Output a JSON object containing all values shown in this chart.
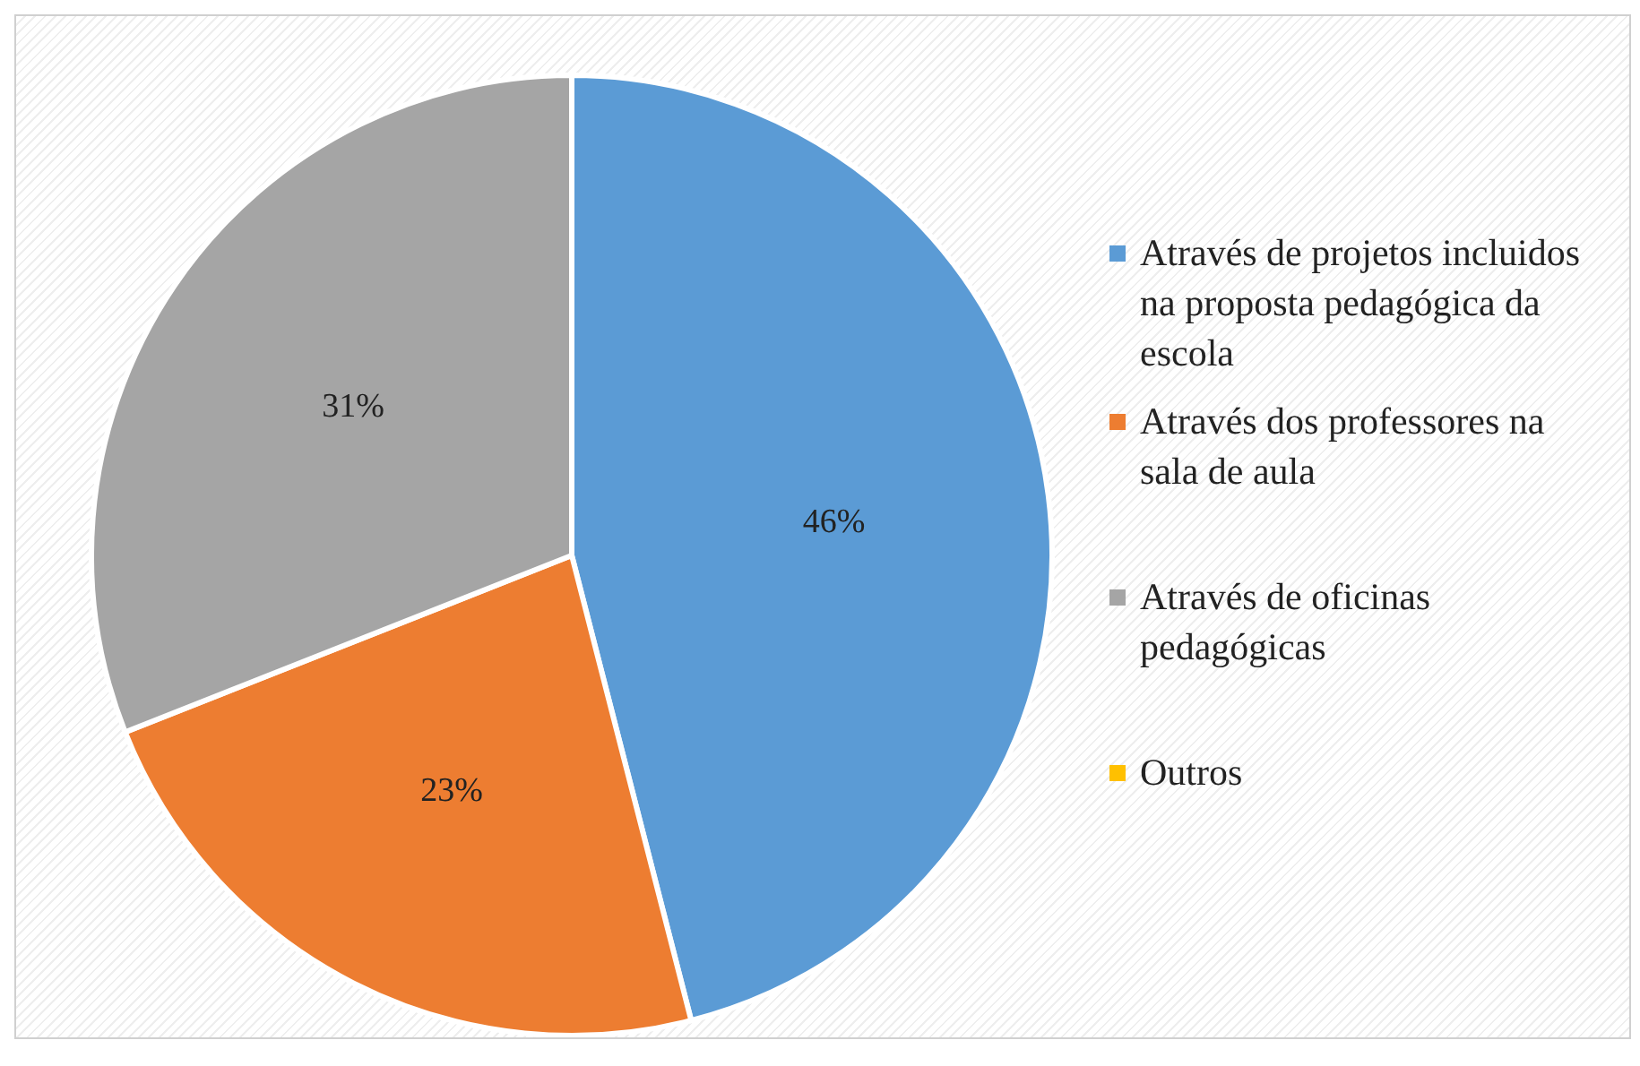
{
  "chart_data": {
    "type": "pie",
    "categories": [
      "Através de projetos incluidos na proposta pedagógica da escola",
      "Através dos professores na sala de aula",
      "Através de oficinas pedagógicas",
      "Outros"
    ],
    "values": [
      46,
      23,
      31,
      0
    ],
    "colors": [
      "#5b9bd5",
      "#ed7d31",
      "#a5a5a5",
      "#ffc000"
    ],
    "value_labels": [
      "46%",
      "23%",
      "31%",
      null
    ],
    "legend": "right"
  }
}
